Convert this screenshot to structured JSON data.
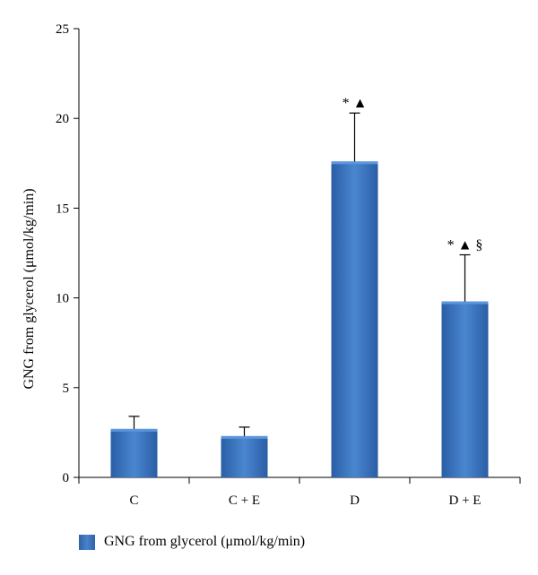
{
  "chart_data": {
    "type": "bar",
    "categories": [
      "C",
      "C + E",
      "D",
      "D + E"
    ],
    "series": [
      {
        "name": "GNG from glycerol (μmol/kg/min)",
        "values": [
          2.7,
          2.3,
          17.6,
          9.8
        ],
        "error_upper": [
          3.4,
          2.8,
          20.3,
          12.4
        ],
        "color": "#3a72bc"
      }
    ],
    "annotations": [
      "",
      "",
      "* ▲",
      "* ▲ §"
    ],
    "ylabel": "GNG from glycerol (μmol/kg/min)",
    "xlabel": "",
    "ylim": [
      0,
      25
    ],
    "yticks": [
      0,
      5,
      10,
      15,
      20,
      25
    ],
    "grid": false,
    "legend_position": "bottom-left"
  }
}
